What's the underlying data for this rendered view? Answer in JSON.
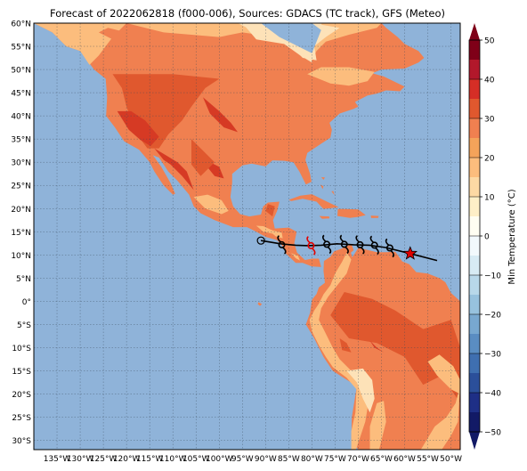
{
  "title": "Forecast of 2022062818 (f000-006), Sources: GDACS (TC track), GFS (Meteo)",
  "map": {
    "lon_range": [
      -140,
      -48
    ],
    "lat_range": [
      -32,
      60
    ],
    "lon_ticks": [
      {
        "v": -135,
        "label": "135°W"
      },
      {
        "v": -130,
        "label": "130°W"
      },
      {
        "v": -125,
        "label": "125°W"
      },
      {
        "v": -120,
        "label": "120°W"
      },
      {
        "v": -115,
        "label": "115°W"
      },
      {
        "v": -110,
        "label": "110°W"
      },
      {
        "v": -105,
        "label": "105°W"
      },
      {
        "v": -100,
        "label": "100°W"
      },
      {
        "v": -95,
        "label": "95°W"
      },
      {
        "v": -90,
        "label": "90°W"
      },
      {
        "v": -85,
        "label": "85°W"
      },
      {
        "v": -80,
        "label": "80°W"
      },
      {
        "v": -75,
        "label": "75°W"
      },
      {
        "v": -70,
        "label": "70°W"
      },
      {
        "v": -65,
        "label": "65°W"
      },
      {
        "v": -60,
        "label": "60°W"
      },
      {
        "v": -55,
        "label": "55°W"
      },
      {
        "v": -50,
        "label": "50°W"
      }
    ],
    "lat_ticks": [
      {
        "v": 60,
        "label": "60°N"
      },
      {
        "v": 55,
        "label": "55°N"
      },
      {
        "v": 50,
        "label": "50°N"
      },
      {
        "v": 45,
        "label": "45°N"
      },
      {
        "v": 40,
        "label": "40°N"
      },
      {
        "v": 35,
        "label": "35°N"
      },
      {
        "v": 30,
        "label": "30°N"
      },
      {
        "v": 25,
        "label": "25°N"
      },
      {
        "v": 20,
        "label": "20°N"
      },
      {
        "v": 15,
        "label": "15°N"
      },
      {
        "v": 10,
        "label": "10°N"
      },
      {
        "v": 5,
        "label": "5°N"
      },
      {
        "v": 0,
        "label": "0°"
      },
      {
        "v": -5,
        "label": "5°S"
      },
      {
        "v": -10,
        "label": "10°S"
      },
      {
        "v": -15,
        "label": "15°S"
      },
      {
        "v": -20,
        "label": "20°S"
      },
      {
        "v": -25,
        "label": "25°S"
      },
      {
        "v": -30,
        "label": "30°S"
      }
    ],
    "ocean_color": "#8fb3d9",
    "land_colors": {
      "warm": "#f08050",
      "hot": "#e0582e",
      "hotter": "#d63a24",
      "mild": "#fcbd7d",
      "cool": "#fde2b8"
    }
  },
  "colorbar": {
    "label": "Min Temperature (°C)",
    "ticks": [
      {
        "v": 50,
        "label": "50"
      },
      {
        "v": 40,
        "label": "40"
      },
      {
        "v": 30,
        "label": "30"
      },
      {
        "v": 20,
        "label": "20"
      },
      {
        "v": 10,
        "label": "10"
      },
      {
        "v": 0,
        "label": "0"
      },
      {
        "v": -10,
        "label": "−10"
      },
      {
        "v": -20,
        "label": "−20"
      },
      {
        "v": -30,
        "label": "−30"
      },
      {
        "v": -40,
        "label": "−40"
      },
      {
        "v": -50,
        "label": "−50"
      }
    ],
    "range": [
      -50,
      50
    ],
    "bands": [
      {
        "from": 45,
        "to": 50,
        "color": "#7f0018"
      },
      {
        "from": 40,
        "to": 45,
        "color": "#b2182b"
      },
      {
        "from": 35,
        "to": 40,
        "color": "#d52e26"
      },
      {
        "from": 30,
        "to": 35,
        "color": "#e0582e"
      },
      {
        "from": 25,
        "to": 30,
        "color": "#f08050"
      },
      {
        "from": 20,
        "to": 25,
        "color": "#f4a35a"
      },
      {
        "from": 15,
        "to": 20,
        "color": "#fcbd7d"
      },
      {
        "from": 10,
        "to": 15,
        "color": "#fdd9a4"
      },
      {
        "from": 5,
        "to": 10,
        "color": "#feefc7"
      },
      {
        "from": 0,
        "to": 5,
        "color": "#fffef2"
      },
      {
        "from": -5,
        "to": 0,
        "color": "#f2f9fc"
      },
      {
        "from": -10,
        "to": -5,
        "color": "#d7ebf4"
      },
      {
        "from": -15,
        "to": -10,
        "color": "#b8d8ea"
      },
      {
        "from": -20,
        "to": -15,
        "color": "#97c2de"
      },
      {
        "from": -25,
        "to": -20,
        "color": "#78a8d0"
      },
      {
        "from": -30,
        "to": -25,
        "color": "#5a8dc2"
      },
      {
        "from": -35,
        "to": -30,
        "color": "#3f6fb0"
      },
      {
        "from": -40,
        "to": -35,
        "color": "#2b4f9a"
      },
      {
        "from": -45,
        "to": -40,
        "color": "#1e2f86"
      },
      {
        "from": -50,
        "to": -45,
        "color": "#121a66"
      }
    ]
  },
  "track": {
    "points": [
      [
        -91.0,
        13.1
      ],
      [
        -86.8,
        12.4
      ],
      [
        -83.5,
        12.1
      ],
      [
        -80.8,
        12.0
      ],
      [
        -78.0,
        12.1
      ],
      [
        -74.6,
        12.4
      ],
      [
        -71.0,
        12.2
      ],
      [
        -67.6,
        12.1
      ],
      [
        -64.1,
        11.6
      ],
      [
        -58.8,
        10.3
      ],
      [
        -53.0,
        8.8
      ]
    ],
    "cyclone_symbols": [
      {
        "lon": -86.5,
        "lat": 12.2,
        "color": "#000000"
      },
      {
        "lon": -80.2,
        "lat": 12.0,
        "color": "#e00000"
      },
      {
        "lon": -76.8,
        "lat": 12.3,
        "color": "#000000"
      },
      {
        "lon": -73.0,
        "lat": 12.3,
        "color": "#000000"
      },
      {
        "lon": -69.6,
        "lat": 12.2,
        "color": "#000000"
      },
      {
        "lon": -66.5,
        "lat": 12.1,
        "color": "#000000"
      },
      {
        "lon": -63.2,
        "lat": 11.5,
        "color": "#000000"
      }
    ],
    "end_marker": {
      "lon": -91.0,
      "lat": 13.1
    },
    "current_position": {
      "lon": -58.8,
      "lat": 10.3,
      "color": "#e00000"
    },
    "line_color": "#000000"
  }
}
